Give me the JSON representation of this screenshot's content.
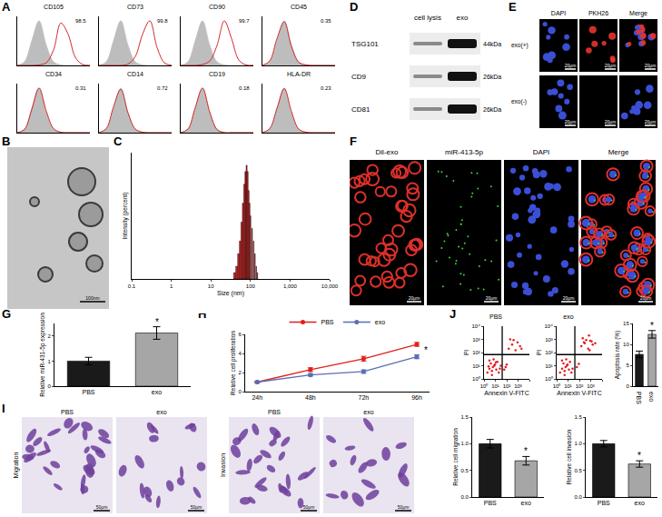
{
  "panel_labels": [
    "A",
    "B",
    "C",
    "D",
    "E",
    "F",
    "G",
    "H",
    "I",
    "J"
  ],
  "chart_data": [
    {
      "type": "line",
      "title": "CD105",
      "x": [
        0,
        1,
        2,
        3,
        4,
        5,
        6,
        7,
        8,
        9,
        10
      ],
      "xlim": [
        0,
        10
      ],
      "ylim": [
        0,
        110
      ],
      "tick_labels": false,
      "annotations": [
        "98.5"
      ],
      "series": [
        {
          "type": "area",
          "color": "#bdbdbd",
          "values": [
            0,
            8,
            55,
            100,
            45,
            8,
            1,
            0,
            0,
            0,
            0
          ]
        },
        {
          "type": "line",
          "color": "#d62728",
          "values": [
            0,
            0,
            0,
            1,
            6,
            35,
            95,
            70,
            18,
            2,
            0
          ]
        }
      ]
    },
    {
      "type": "line",
      "title": "CD73",
      "x": [
        0,
        1,
        2,
        3,
        4,
        5,
        6,
        7,
        8,
        9,
        10
      ],
      "xlim": [
        0,
        10
      ],
      "ylim": [
        0,
        110
      ],
      "tick_labels": false,
      "annotations": [
        "99.8"
      ],
      "series": [
        {
          "type": "area",
          "color": "#bdbdbd",
          "values": [
            0,
            8,
            55,
            100,
            45,
            8,
            1,
            0,
            0,
            0,
            0
          ]
        },
        {
          "type": "line",
          "color": "#d62728",
          "values": [
            0,
            0,
            0,
            0,
            3,
            20,
            70,
            100,
            40,
            6,
            0
          ]
        }
      ]
    },
    {
      "type": "line",
      "title": "CD90",
      "x": [
        0,
        1,
        2,
        3,
        4,
        5,
        6,
        7,
        8,
        9,
        10
      ],
      "xlim": [
        0,
        10
      ],
      "ylim": [
        0,
        110
      ],
      "tick_labels": false,
      "annotations": [
        "99.7"
      ],
      "series": [
        {
          "type": "area",
          "color": "#bdbdbd",
          "values": [
            0,
            8,
            55,
            100,
            45,
            8,
            1,
            0,
            0,
            0,
            0
          ]
        },
        {
          "type": "line",
          "color": "#d62728",
          "values": [
            0,
            0,
            0,
            2,
            10,
            45,
            100,
            60,
            12,
            1,
            0
          ]
        }
      ]
    },
    {
      "type": "line",
      "title": "CD45",
      "x": [
        0,
        1,
        2,
        3,
        4,
        5,
        6,
        7,
        8,
        9,
        10
      ],
      "xlim": [
        0,
        10
      ],
      "ylim": [
        0,
        110
      ],
      "tick_labels": false,
      "annotations": [
        "0.35"
      ],
      "series": [
        {
          "type": "area",
          "color": "#bdbdbd",
          "values": [
            0,
            8,
            55,
            100,
            45,
            8,
            1,
            0,
            0,
            0,
            0
          ]
        },
        {
          "type": "line",
          "color": "#d62728",
          "values": [
            0,
            10,
            60,
            98,
            42,
            7,
            1,
            0,
            0,
            0,
            0
          ]
        }
      ]
    },
    {
      "type": "line",
      "title": "CD34",
      "x": [
        0,
        1,
        2,
        3,
        4,
        5,
        6,
        7,
        8,
        9,
        10
      ],
      "xlim": [
        0,
        10
      ],
      "ylim": [
        0,
        110
      ],
      "tick_labels": false,
      "annotations": [
        "0.31"
      ],
      "series": [
        {
          "type": "area",
          "color": "#bdbdbd",
          "values": [
            0,
            8,
            55,
            100,
            45,
            8,
            1,
            0,
            0,
            0,
            0
          ]
        },
        {
          "type": "line",
          "color": "#d62728",
          "values": [
            0,
            7,
            52,
            100,
            48,
            9,
            1,
            0,
            0,
            0,
            0
          ]
        }
      ]
    },
    {
      "type": "line",
      "title": "CD14",
      "x": [
        0,
        1,
        2,
        3,
        4,
        5,
        6,
        7,
        8,
        9,
        10
      ],
      "xlim": [
        0,
        10
      ],
      "ylim": [
        0,
        110
      ],
      "tick_labels": false,
      "annotations": [
        "0.72"
      ],
      "series": [
        {
          "type": "area",
          "color": "#bdbdbd",
          "values": [
            0,
            8,
            55,
            100,
            45,
            8,
            1,
            0,
            0,
            0,
            0
          ]
        },
        {
          "type": "line",
          "color": "#d62728",
          "values": [
            0,
            9,
            58,
            97,
            44,
            8,
            1,
            0,
            0,
            0,
            0
          ]
        }
      ]
    },
    {
      "type": "line",
      "title": "CD19",
      "x": [
        0,
        1,
        2,
        3,
        4,
        5,
        6,
        7,
        8,
        9,
        10
      ],
      "xlim": [
        0,
        10
      ],
      "ylim": [
        0,
        110
      ],
      "tick_labels": false,
      "annotations": [
        "0.18"
      ],
      "series": [
        {
          "type": "area",
          "color": "#bdbdbd",
          "values": [
            0,
            8,
            55,
            100,
            45,
            8,
            1,
            0,
            0,
            0,
            0
          ]
        },
        {
          "type": "line",
          "color": "#d62728",
          "values": [
            0,
            8,
            56,
            100,
            46,
            7,
            0,
            0,
            0,
            0,
            0
          ]
        }
      ]
    },
    {
      "type": "line",
      "title": "HLA-DR",
      "x": [
        0,
        1,
        2,
        3,
        4,
        5,
        6,
        7,
        8,
        9,
        10
      ],
      "xlim": [
        0,
        10
      ],
      "ylim": [
        0,
        110
      ],
      "tick_labels": false,
      "annotations": [
        "0.23"
      ],
      "series": [
        {
          "type": "area",
          "color": "#bdbdbd",
          "values": [
            0,
            8,
            55,
            100,
            45,
            8,
            1,
            0,
            0,
            0,
            0
          ]
        },
        {
          "type": "line",
          "color": "#d62728",
          "values": [
            0,
            9,
            54,
            99,
            47,
            8,
            1,
            0,
            0,
            0,
            0
          ]
        }
      ]
    },
    {
      "type": "bar",
      "x": [
        40,
        45,
        50,
        55,
        60,
        65,
        70,
        75,
        80,
        85,
        90,
        95,
        100,
        110,
        120,
        130,
        140,
        150
      ],
      "values": [
        1,
        2,
        4,
        6,
        9,
        12,
        15,
        17,
        18,
        17,
        14,
        12,
        10,
        8,
        6,
        4,
        2,
        1
      ],
      "color": "#cc1f1f",
      "log": "x",
      "xlim": [
        0.1,
        10000
      ],
      "xticks": [
        0.1,
        1,
        10,
        100,
        {
          "value": 1000,
          "label": "1,000"
        },
        {
          "value": 10000,
          "label": "10,000"
        }
      ],
      "ylim": [
        0,
        20
      ],
      "tick_labels": "x",
      "x_label": "Size (nm)",
      "y_label": "Intensity (percent)"
    },
    {
      "type": "bar",
      "categories": [
        "PBS",
        "exo"
      ],
      "values": [
        1.0,
        2.12
      ],
      "errors": [
        0.15,
        0.25
      ],
      "colors": [
        "#1a1a1a",
        "#a6a6a6"
      ],
      "ylim": [
        0,
        2.5
      ],
      "yticks": [
        0,
        1,
        2
      ],
      "y_label": "Relative miR-431-5p expression",
      "annotations": [
        "*"
      ]
    },
    {
      "type": "line",
      "categories": [
        "24h",
        "48h",
        "72h",
        "96h"
      ],
      "ylim": [
        0,
        6
      ],
      "yticks": [
        0,
        2,
        4,
        6
      ],
      "y_label": "Relative cell proliferation",
      "legend": "top",
      "annotations": [
        "*"
      ],
      "series": [
        {
          "name": "PBS",
          "color": "#e0201b",
          "marker": "circle",
          "values": [
            1,
            2.3,
            3.45,
            4.95
          ],
          "errors": [
            0.05,
            0.2,
            0.25,
            0.2
          ]
        },
        {
          "name": "exo",
          "color": "#5a6eb4",
          "marker": "circle",
          "values": [
            1,
            1.75,
            2.1,
            3.65
          ],
          "errors": [
            0.05,
            0.12,
            0.18,
            0.2
          ]
        }
      ]
    },
    {
      "type": "scatter",
      "title": "PBS",
      "log": true,
      "xlim": [
        1,
        10000
      ],
      "ylim": [
        1,
        10000
      ],
      "xticks": [
        {
          "value": 1,
          "label": "10⁰"
        },
        {
          "value": 10,
          "label": "10¹"
        },
        {
          "value": 100,
          "label": "10²"
        },
        {
          "value": 1000,
          "label": "10³"
        },
        {
          "value": 10000,
          "label": "10⁴"
        }
      ],
      "yticks": [
        {
          "value": 1,
          "label": "10⁰"
        },
        {
          "value": 10,
          "label": "10¹"
        },
        {
          "value": 100,
          "label": "10²"
        },
        {
          "value": 1000,
          "label": "10³"
        },
        {
          "value": 10000,
          "label": "10⁴"
        }
      ],
      "x_label": "Annexin V-FITC",
      "y_label": "PI",
      "series": [
        {
          "type": "scatter",
          "color": "#e41a1c",
          "marker": "dot",
          "x": [
            2,
            3,
            5,
            8,
            12,
            4,
            6,
            15,
            20,
            3,
            9,
            25,
            7,
            5,
            2.5,
            11,
            30,
            150,
            300,
            600,
            900,
            200,
            1500,
            60,
            80,
            100,
            2000,
            400
          ],
          "values": [
            3,
            6,
            4,
            10,
            5,
            15,
            8,
            20,
            3,
            25,
            12,
            6,
            30,
            2,
            9,
            18,
            10,
            200,
            400,
            150,
            600,
            1000,
            300,
            5,
            8,
            12,
            200,
            900
          ]
        },
        {
          "type": "line",
          "color": "#000000",
          "x": [
            1,
            10000
          ],
          "values": [
            70,
            70
          ]
        },
        {
          "type": "line",
          "color": "#000000",
          "x": [
            40,
            40
          ],
          "values": [
            1,
            10000
          ]
        }
      ]
    },
    {
      "type": "scatter",
      "title": "exo",
      "log": true,
      "xlim": [
        1,
        10000
      ],
      "ylim": [
        1,
        10000
      ],
      "xticks": [
        {
          "value": 1,
          "label": "10⁰"
        },
        {
          "value": 10,
          "label": "10¹"
        },
        {
          "value": 100,
          "label": "10²"
        },
        {
          "value": 1000,
          "label": "10³"
        },
        {
          "value": 10000,
          "label": "10⁴"
        }
      ],
      "yticks": [
        {
          "value": 1,
          "label": "10⁰"
        },
        {
          "value": 10,
          "label": "10¹"
        },
        {
          "value": 100,
          "label": "10²"
        },
        {
          "value": 1000,
          "label": "10³"
        },
        {
          "value": 10000,
          "label": "10⁴"
        }
      ],
      "x_label": "Annexin V-FITC",
      "y_label": "PI",
      "series": [
        {
          "type": "scatter",
          "color": "#e41a1c",
          "marker": "dot",
          "x": [
            2,
            3,
            5,
            8,
            12,
            4,
            6,
            15,
            20,
            3,
            9,
            25,
            7,
            5,
            150,
            300,
            600,
            900,
            200,
            1500,
            400,
            800,
            1200,
            250,
            700,
            2500,
            60,
            90
          ],
          "values": [
            3,
            6,
            4,
            10,
            5,
            15,
            8,
            20,
            3,
            25,
            12,
            6,
            30,
            2,
            300,
            500,
            200,
            800,
            1200,
            400,
            900,
            150,
            700,
            600,
            2000,
            500,
            8,
            14
          ]
        },
        {
          "type": "line",
          "color": "#000000",
          "x": [
            1,
            10000
          ],
          "values": [
            70,
            70
          ]
        },
        {
          "type": "line",
          "color": "#000000",
          "x": [
            40,
            40
          ],
          "values": [
            1,
            10000
          ]
        }
      ]
    },
    {
      "type": "bar",
      "categories": [
        "PBS",
        "exo"
      ],
      "values": [
        7.6,
        12.4
      ],
      "errors": [
        0.8,
        0.9
      ],
      "colors": [
        "#1a1a1a",
        "#a6a6a6"
      ],
      "ylim": [
        0,
        15
      ],
      "yticks": [
        0,
        5,
        10,
        15
      ],
      "y_label": "Apoptosis rate (%)",
      "annotations": [
        "*"
      ]
    },
    {
      "type": "bar",
      "categories": [
        "PBS",
        "exo"
      ],
      "values": [
        1.0,
        0.68
      ],
      "errors": [
        0.08,
        0.08
      ],
      "colors": [
        "#1a1a1a",
        "#a6a6a6"
      ],
      "ylim": [
        0,
        1.5
      ],
      "yticks": [
        {
          "value": 0,
          "label": "0.0"
        },
        {
          "value": 0.5,
          "label": "0.5"
        },
        {
          "value": 1,
          "label": "1.0"
        },
        {
          "value": 1.5,
          "label": "1.5"
        }
      ],
      "y_label": "Relative cell migration",
      "annotations": [
        "*"
      ]
    },
    {
      "type": "bar",
      "categories": [
        "PBS",
        "exo"
      ],
      "values": [
        1.0,
        0.62
      ],
      "errors": [
        0.06,
        0.06
      ],
      "colors": [
        "#1a1a1a",
        "#a6a6a6"
      ],
      "ylim": [
        0,
        1.5
      ],
      "yticks": [
        {
          "value": 0,
          "label": "0.0"
        },
        {
          "value": 0.5,
          "label": "0.5"
        },
        {
          "value": 1,
          "label": "1.0"
        },
        {
          "value": 1.5,
          "label": "1.5"
        }
      ],
      "y_label": "Relative cell invasion",
      "annotations": [
        "*"
      ]
    }
  ],
  "images": {
    "B": {
      "scale_bar": "100nm"
    },
    "D": {
      "columns": [
        "cell lysis",
        "exo"
      ],
      "rows": [
        {
          "name": "TSG101",
          "size": "44kDa"
        },
        {
          "name": "CD9",
          "size": "26kDa"
        },
        {
          "name": "CD81",
          "size": "26kDa"
        }
      ]
    },
    "E": {
      "columns": [
        "DAPI",
        "PKH26",
        "Merge"
      ],
      "rows": [
        "exo(+)",
        "exo(-)"
      ],
      "scale_bar": "20μm"
    },
    "F": {
      "columns": [
        "Dil-exo",
        "miR-413-5p",
        "DAPI",
        "Merge"
      ],
      "scale_bar": "20μm"
    },
    "I": {
      "groups": [
        "Migration",
        "Invasion"
      ],
      "columns": [
        "PBS",
        "exo"
      ],
      "scale_bar": "50μm"
    }
  }
}
